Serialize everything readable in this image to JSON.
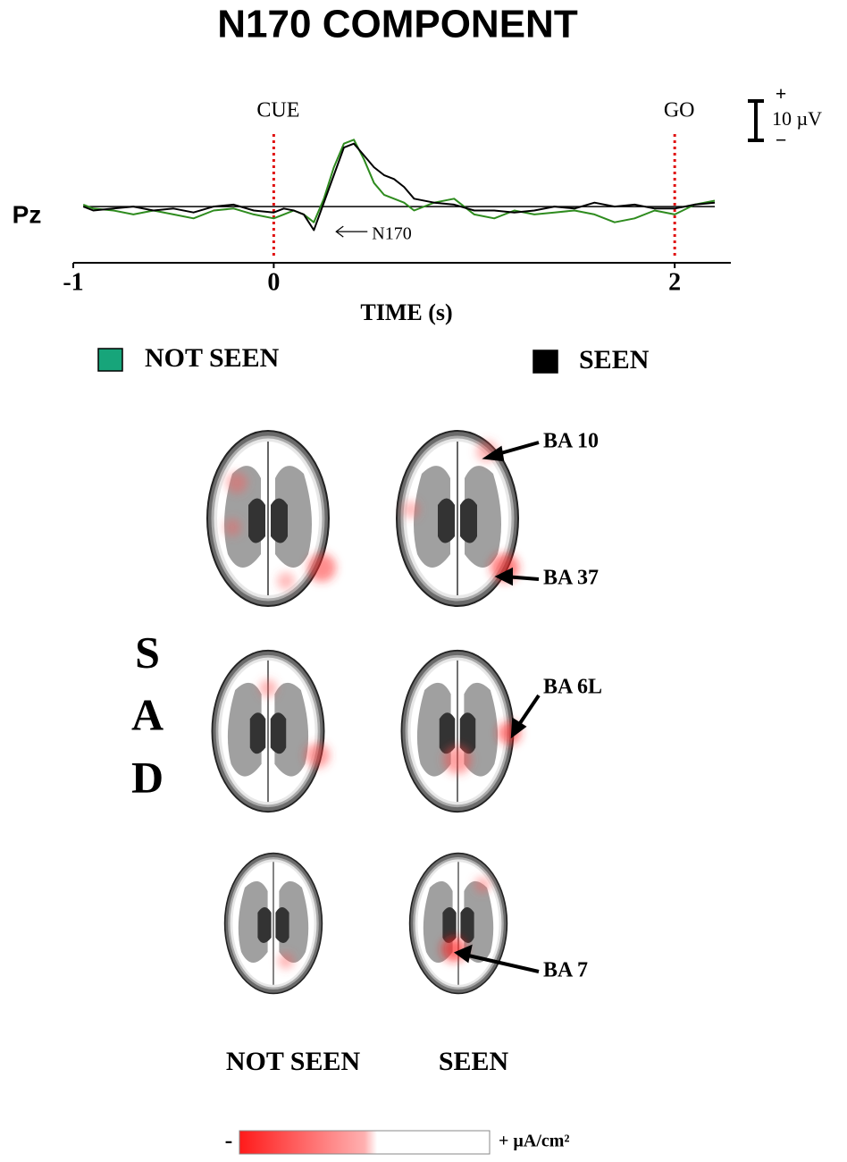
{
  "chart_data": {
    "type": "line",
    "title": "N170 COMPONENT",
    "y_label": "Pz",
    "x_label": "TIME (s)",
    "x": [
      -0.95,
      -0.9,
      -0.8,
      -0.7,
      -0.6,
      -0.5,
      -0.4,
      -0.3,
      -0.2,
      -0.1,
      0,
      0.05,
      0.1,
      0.15,
      0.2,
      0.25,
      0.3,
      0.35,
      0.4,
      0.45,
      0.5,
      0.55,
      0.6,
      0.65,
      0.7,
      0.8,
      0.9,
      1.0,
      1.1,
      1.2,
      1.3,
      1.4,
      1.5,
      1.6,
      1.7,
      1.8,
      1.9,
      2.0,
      2.1,
      2.2
    ],
    "series": [
      {
        "name": "NOT SEEN",
        "color": "#2e8b1e",
        "swatch_color": "#17a57a",
        "values": [
          0.5,
          -0.5,
          -1,
          -2,
          -1,
          -2,
          -3,
          -1,
          -0.5,
          -2,
          -3,
          -2,
          -1,
          -2,
          -4,
          2,
          10,
          16,
          17,
          12,
          6,
          3,
          2,
          1,
          -1,
          1,
          2,
          -2,
          -3,
          -1,
          -2,
          -1.5,
          -1,
          -2,
          -4,
          -3,
          -1,
          -2,
          0.5,
          1.5
        ]
      },
      {
        "name": "SEEN",
        "color": "#000000",
        "swatch_color": "#000000",
        "values": [
          0,
          -1,
          -0.5,
          0,
          -1,
          -0.5,
          -1.5,
          0,
          0.5,
          -1,
          -1.5,
          -0.5,
          -1,
          -2,
          -6,
          1,
          8,
          15,
          16,
          13,
          10,
          8,
          7,
          5,
          2,
          1,
          0.5,
          -1,
          -1,
          -1.5,
          -1,
          0,
          -0.5,
          1,
          0,
          0.5,
          -0.5,
          -0.5,
          0.5,
          1
        ]
      }
    ],
    "xlim": [
      -1,
      2.28
    ],
    "xticks": [
      -1,
      0,
      2
    ],
    "ylim": [
      -14.3,
      29.8
    ],
    "markers": [
      {
        "text": "CUE",
        "x": 0
      },
      {
        "text": "GO",
        "x": 2
      }
    ],
    "annotations": [
      {
        "text": "N170",
        "x": 0.2
      }
    ],
    "scale_bar": {
      "value": 10,
      "label": "10 µV",
      "plus": "+",
      "minus": "−"
    }
  },
  "figure": {
    "group_letters": [
      "S",
      "A",
      "D"
    ],
    "region_labels": [
      "BA 10",
      "BA 37",
      "BA 6L",
      "BA 7"
    ],
    "column_labels": [
      "NOT SEEN",
      "SEEN"
    ],
    "colorbar": {
      "min_label": "-",
      "max_label": "+ µA/cm²"
    }
  }
}
